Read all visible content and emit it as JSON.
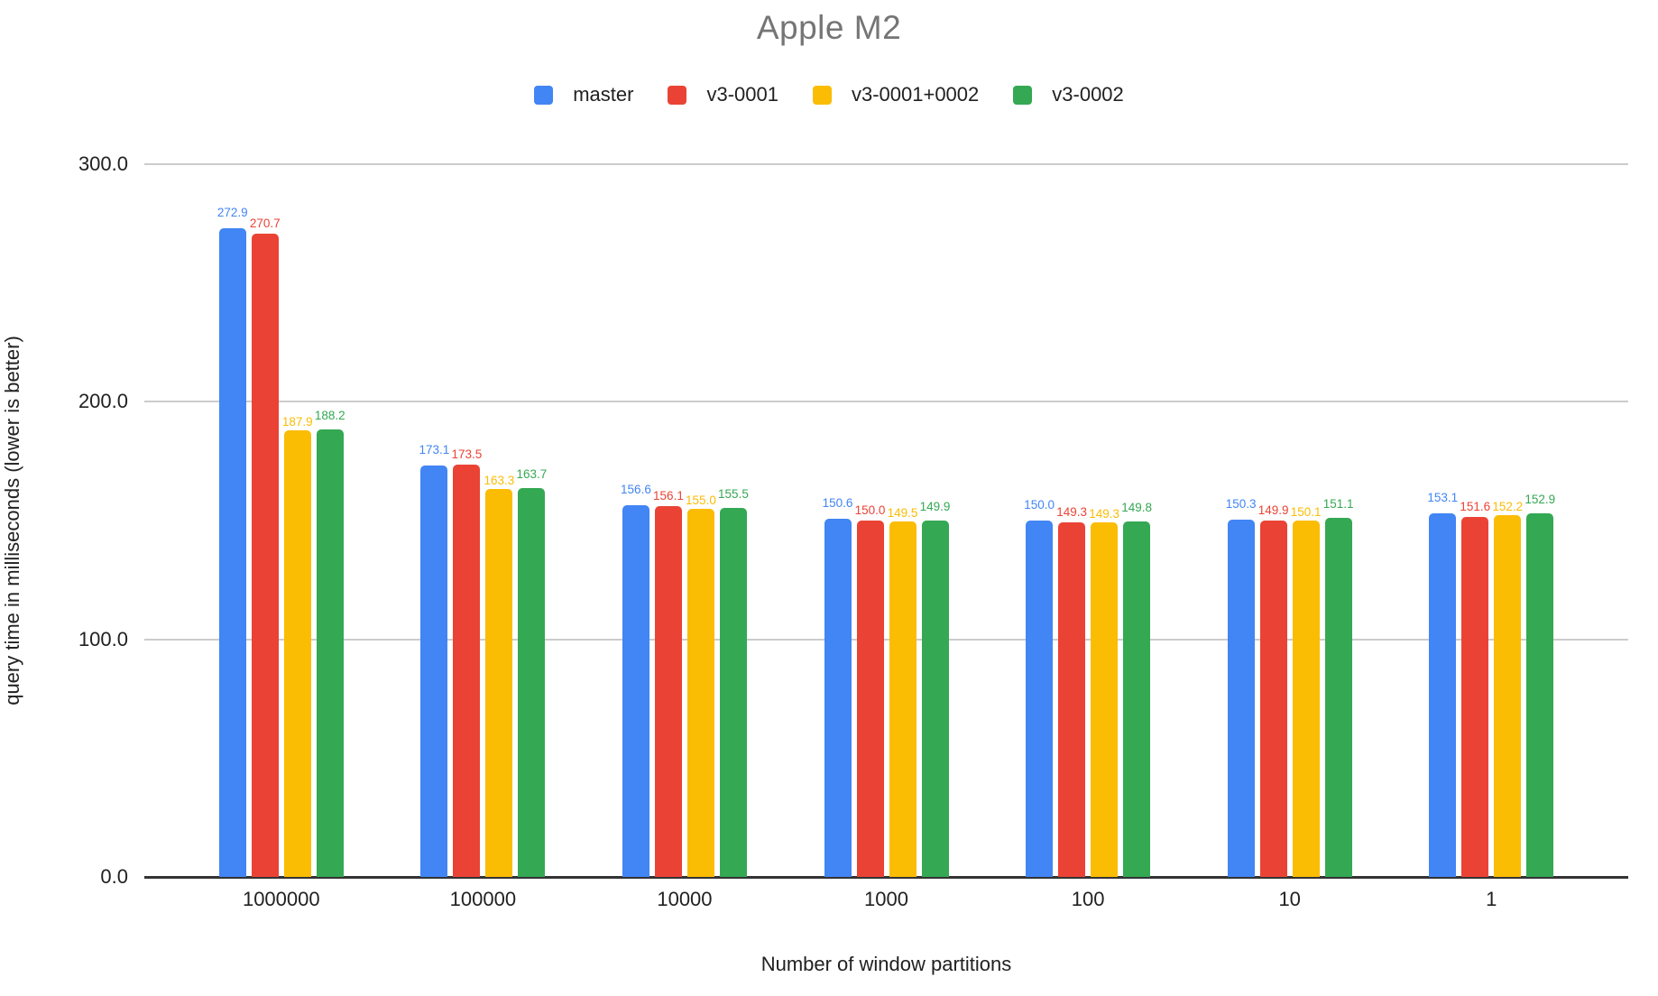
{
  "title": "Apple M2",
  "legend": {
    "position": "top",
    "items": [
      {
        "label": "master",
        "color": "#4285F4"
      },
      {
        "label": "v3-0001",
        "color": "#EA4335"
      },
      {
        "label": "v3-0001+0002",
        "color": "#FBBC04"
      },
      {
        "label": "v3-0002",
        "color": "#34A853"
      }
    ]
  },
  "y_axis": {
    "title": "query time in milliseconds (lower is better)",
    "tick_labels": [
      "0.0",
      "100.0",
      "200.0",
      "300.0"
    ],
    "tick_values": [
      0,
      100,
      200,
      300
    ],
    "max": 300
  },
  "x_axis": {
    "title": "Number of window partitions"
  },
  "colors": {
    "title_text": "#757575",
    "axis_text": "#212121",
    "gridline": "#cccccc",
    "axis_line": "#333333",
    "background": "#ffffff"
  },
  "chart_data": {
    "type": "bar",
    "title": "Apple M2",
    "xlabel": "Number of window partitions",
    "ylabel": "query time in milliseconds (lower is better)",
    "ylim": [
      0,
      300
    ],
    "grid": true,
    "legend_position": "top",
    "bar_value_labels": true,
    "categories": [
      "1000000",
      "100000",
      "10000",
      "1000",
      "100",
      "10",
      "1"
    ],
    "series": [
      {
        "name": "master",
        "color": "#4285F4",
        "values": [
          272.9,
          173.1,
          156.6,
          150.6,
          150.0,
          150.3,
          153.1
        ]
      },
      {
        "name": "v3-0001",
        "color": "#EA4335",
        "values": [
          270.7,
          173.5,
          156.1,
          150.0,
          149.3,
          149.9,
          151.6
        ]
      },
      {
        "name": "v3-0001+0002",
        "color": "#FBBC04",
        "values": [
          187.9,
          163.3,
          155.0,
          149.5,
          149.3,
          150.1,
          152.2
        ]
      },
      {
        "name": "v3-0002",
        "color": "#34A853",
        "values": [
          188.2,
          163.7,
          155.5,
          149.9,
          149.8,
          151.1,
          152.9
        ]
      }
    ]
  }
}
